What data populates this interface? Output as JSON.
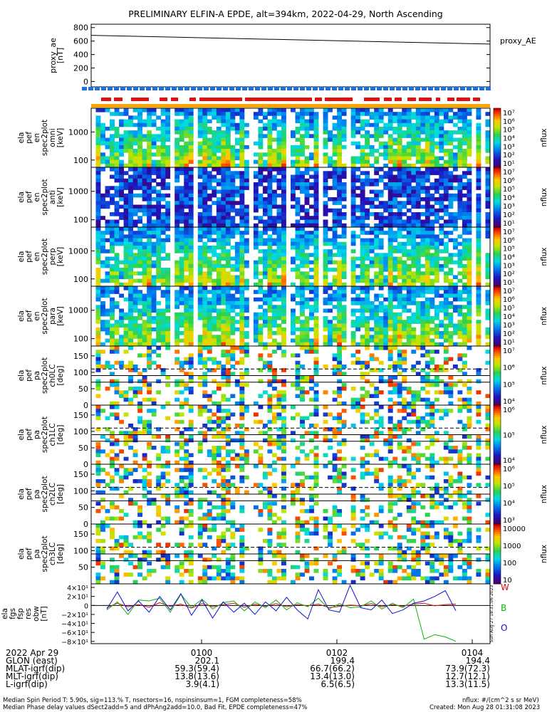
{
  "title": "PRELIMINARY ELFIN-A EPDE, alt=394km, 2022-04-29, North Ascending",
  "colors": {
    "bar_blue": "#1f6fe0",
    "bar_red": "#e01010",
    "bar_orange": "#ffa500",
    "series_w": "#d01010",
    "series_b": "#10b010",
    "series_o": "#1010d0"
  },
  "chart_data": [
    {
      "type": "line",
      "panel": "proxy_ae",
      "ylabel": "proxy_ae [nT]",
      "legend": "proxy_AE",
      "ylim": [
        -80,
        850
      ],
      "yticks": [
        "0",
        "200",
        "400",
        "600",
        "800"
      ],
      "x": [
        0,
        1
      ],
      "y": [
        685,
        555
      ]
    },
    {
      "type": "heatmap",
      "panel": "ela pef en spec2plot omni",
      "ylabel_lines": [
        "ela",
        "pef",
        "en",
        "spec2plot",
        "omni",
        "[keV]"
      ],
      "ylim_log": [
        55,
        7000
      ],
      "yticks": [
        "100",
        "1000"
      ],
      "colorbar_label": "nflux",
      "colorbar_ticks": [
        "10",
        "10^2",
        "10^3",
        "10^4",
        "10^5",
        "10^6",
        "10^7"
      ],
      "colorbar_display": [
        "10¹",
        "10²",
        "10³",
        "10⁴",
        "10⁵",
        "10⁶",
        "10⁷"
      ]
    },
    {
      "type": "heatmap",
      "panel": "ela pef en spec2plot anti",
      "ylabel_lines": [
        "ela",
        "pef",
        "en",
        "spec2plot",
        "anti",
        "[keV]"
      ],
      "ylim_log": [
        55,
        7000
      ],
      "yticks": [
        "100",
        "1000"
      ],
      "colorbar_label": "nflux",
      "colorbar_display": [
        "10¹",
        "10²",
        "10³",
        "10⁴",
        "10⁵",
        "10⁶",
        "10⁷"
      ]
    },
    {
      "type": "heatmap",
      "panel": "ela pef en spec2plot perp",
      "ylabel_lines": [
        "ela",
        "pef",
        "en",
        "spec2plot",
        "perp",
        "[keV]"
      ],
      "ylim_log": [
        55,
        7000
      ],
      "yticks": [
        "100",
        "1000"
      ],
      "colorbar_label": "nflux",
      "colorbar_display": [
        "10¹",
        "10²",
        "10³",
        "10⁴",
        "10⁵",
        "10⁶",
        "10⁷"
      ]
    },
    {
      "type": "heatmap",
      "panel": "ela pef en spec2plot para",
      "ylabel_lines": [
        "ela",
        "pef",
        "en",
        "spec2plot",
        "para",
        "[keV]"
      ],
      "ylim_log": [
        55,
        7000
      ],
      "yticks": [
        "100",
        "1000"
      ],
      "colorbar_label": "nflux",
      "colorbar_display": [
        "10¹",
        "10²",
        "10³",
        "10⁴",
        "10⁵",
        "10⁶",
        "10⁷"
      ]
    },
    {
      "type": "heatmap",
      "panel": "ela pef pa spec2plot ch0LC",
      "ylabel_lines": [
        "ela",
        "pef",
        "pa",
        "spec2plot",
        "ch0LC",
        "[deg]"
      ],
      "ylim": [
        0,
        180
      ],
      "yticks": [
        "0",
        "50",
        "100",
        "150"
      ],
      "lines": {
        "solid": [
          70,
          90
        ],
        "dashed": [
          110
        ]
      },
      "colorbar_label": "nflux",
      "colorbar_display": [
        "10⁴",
        "10⁵",
        "10⁶",
        "10⁷"
      ]
    },
    {
      "type": "heatmap",
      "panel": "ela pef pa spec2plot ch1LC",
      "ylabel_lines": [
        "ela",
        "pef",
        "pa",
        "spec2plot",
        "ch1LC",
        "[deg]"
      ],
      "ylim": [
        0,
        180
      ],
      "yticks": [
        "0",
        "50",
        "100",
        "150"
      ],
      "lines": {
        "solid": [
          70,
          90
        ],
        "dashed": [
          110
        ]
      },
      "colorbar_label": "nflux",
      "colorbar_display": [
        "10⁴",
        "10⁵",
        "10⁶"
      ]
    },
    {
      "type": "heatmap",
      "panel": "ela pef pa spec2plot ch2LC",
      "ylabel_lines": [
        "ela",
        "pef",
        "pa",
        "spec2plot",
        "ch2LC",
        "[deg]"
      ],
      "ylim": [
        0,
        180
      ],
      "yticks": [
        "0",
        "50",
        "100",
        "150"
      ],
      "lines": {
        "solid": [
          70,
          90
        ],
        "dashed": [
          110
        ]
      },
      "colorbar_label": "nflux",
      "colorbar_display": [
        "10³",
        "10⁴",
        "10⁵",
        "10⁶"
      ]
    },
    {
      "type": "heatmap",
      "panel": "ela pef pa spec2plot ch3LC",
      "ylabel_lines": [
        "ela",
        "pef",
        "pa",
        "spec2plot",
        "ch3LC",
        "[deg]"
      ],
      "ylim": [
        0,
        180
      ],
      "yticks": [
        "50",
        "100",
        "150"
      ],
      "lines": {
        "solid": [
          70,
          90
        ],
        "dashed": [
          110
        ]
      },
      "colorbar_label": "nflux",
      "colorbar_display": [
        "10",
        "100",
        "1000",
        "10000"
      ]
    },
    {
      "type": "line",
      "panel": "ela fgs fsp res obw",
      "ylabel_lines": [
        "ela",
        "fgs",
        "fsp",
        "res",
        "obw",
        "[nT]"
      ],
      "ylim": [
        -85,
        48
      ],
      "yticks": [
        "4×10¹",
        "2×10¹",
        "0",
        "−2×10¹",
        "−4×10¹",
        "−6×10¹",
        "−8×10¹"
      ],
      "ytick_values": [
        40,
        20,
        0,
        -20,
        -40,
        -60,
        -80
      ],
      "side_stamp": "Sun Aug 27 18:31:06 2023",
      "series": [
        {
          "name": "W",
          "values": [
            -5,
            5,
            -3,
            2,
            -4,
            6,
            -2,
            3,
            -6,
            4,
            -3,
            2,
            5,
            -4,
            3,
            -2,
            4,
            -3,
            2,
            -1,
            3,
            -5,
            -2,
            1,
            -1,
            4,
            -3,
            2,
            -2,
            3,
            5,
            -1,
            2,
            3
          ]
        },
        {
          "name": "B",
          "values": [
            -10,
            8,
            -20,
            12,
            10,
            16,
            -15,
            25,
            -5,
            14,
            -8,
            6,
            10,
            -12,
            8,
            -5,
            12,
            -10,
            6,
            -3,
            16,
            -8,
            4,
            -5,
            -3,
            10,
            -8,
            5,
            -5,
            14,
            -75,
            -65,
            -70,
            -80
          ]
        },
        {
          "name": "O",
          "values": [
            -8,
            30,
            -12,
            10,
            -15,
            20,
            -10,
            26,
            -22,
            12,
            -28,
            8,
            -15,
            5,
            -20,
            8,
            -12,
            18,
            -10,
            -30,
            35,
            -10,
            -15,
            45,
            -5,
            -10,
            12,
            -18,
            -10,
            5,
            10,
            20,
            33,
            -12
          ]
        }
      ]
    }
  ],
  "time_axis": {
    "labels": [
      "2022 Apr 29",
      "GLON (east)",
      "MLAT-igrf(dip)",
      "MLT-igrf(dip)",
      "L-igrf(dip)"
    ],
    "ticks": [
      {
        "time": "0100",
        "glon": "202.1",
        "mlat": "59.3(59.4)",
        "mlt": "13.8(13.6)",
        "l": "3.9(4.1)"
      },
      {
        "time": "0102",
        "glon": "199.4",
        "mlat": "66.7(66.2)",
        "mlt": "13.4(13.0)",
        "l": "6.5(6.5)"
      },
      {
        "time": "0104",
        "glon": "194.4",
        "mlat": "73.9(72.3)",
        "mlt": "12.7(12.1)",
        "l": "13.3(11.5)"
      }
    ]
  },
  "footer": {
    "line1": "Median Spin Period T: 5.90s, sig=113.% T, nsectors=16, nspinsinsum=1, FGM completeness=58%",
    "line2": "Median Phase delay values dSect2add=5 and dPhAng2add=10.0, Bad Fit, EPDE completeness=47%",
    "nflux": "nflux: #/(cm^2 s sr MeV)",
    "created": "Created: Mon Aug 28 01:31:08 2023"
  }
}
